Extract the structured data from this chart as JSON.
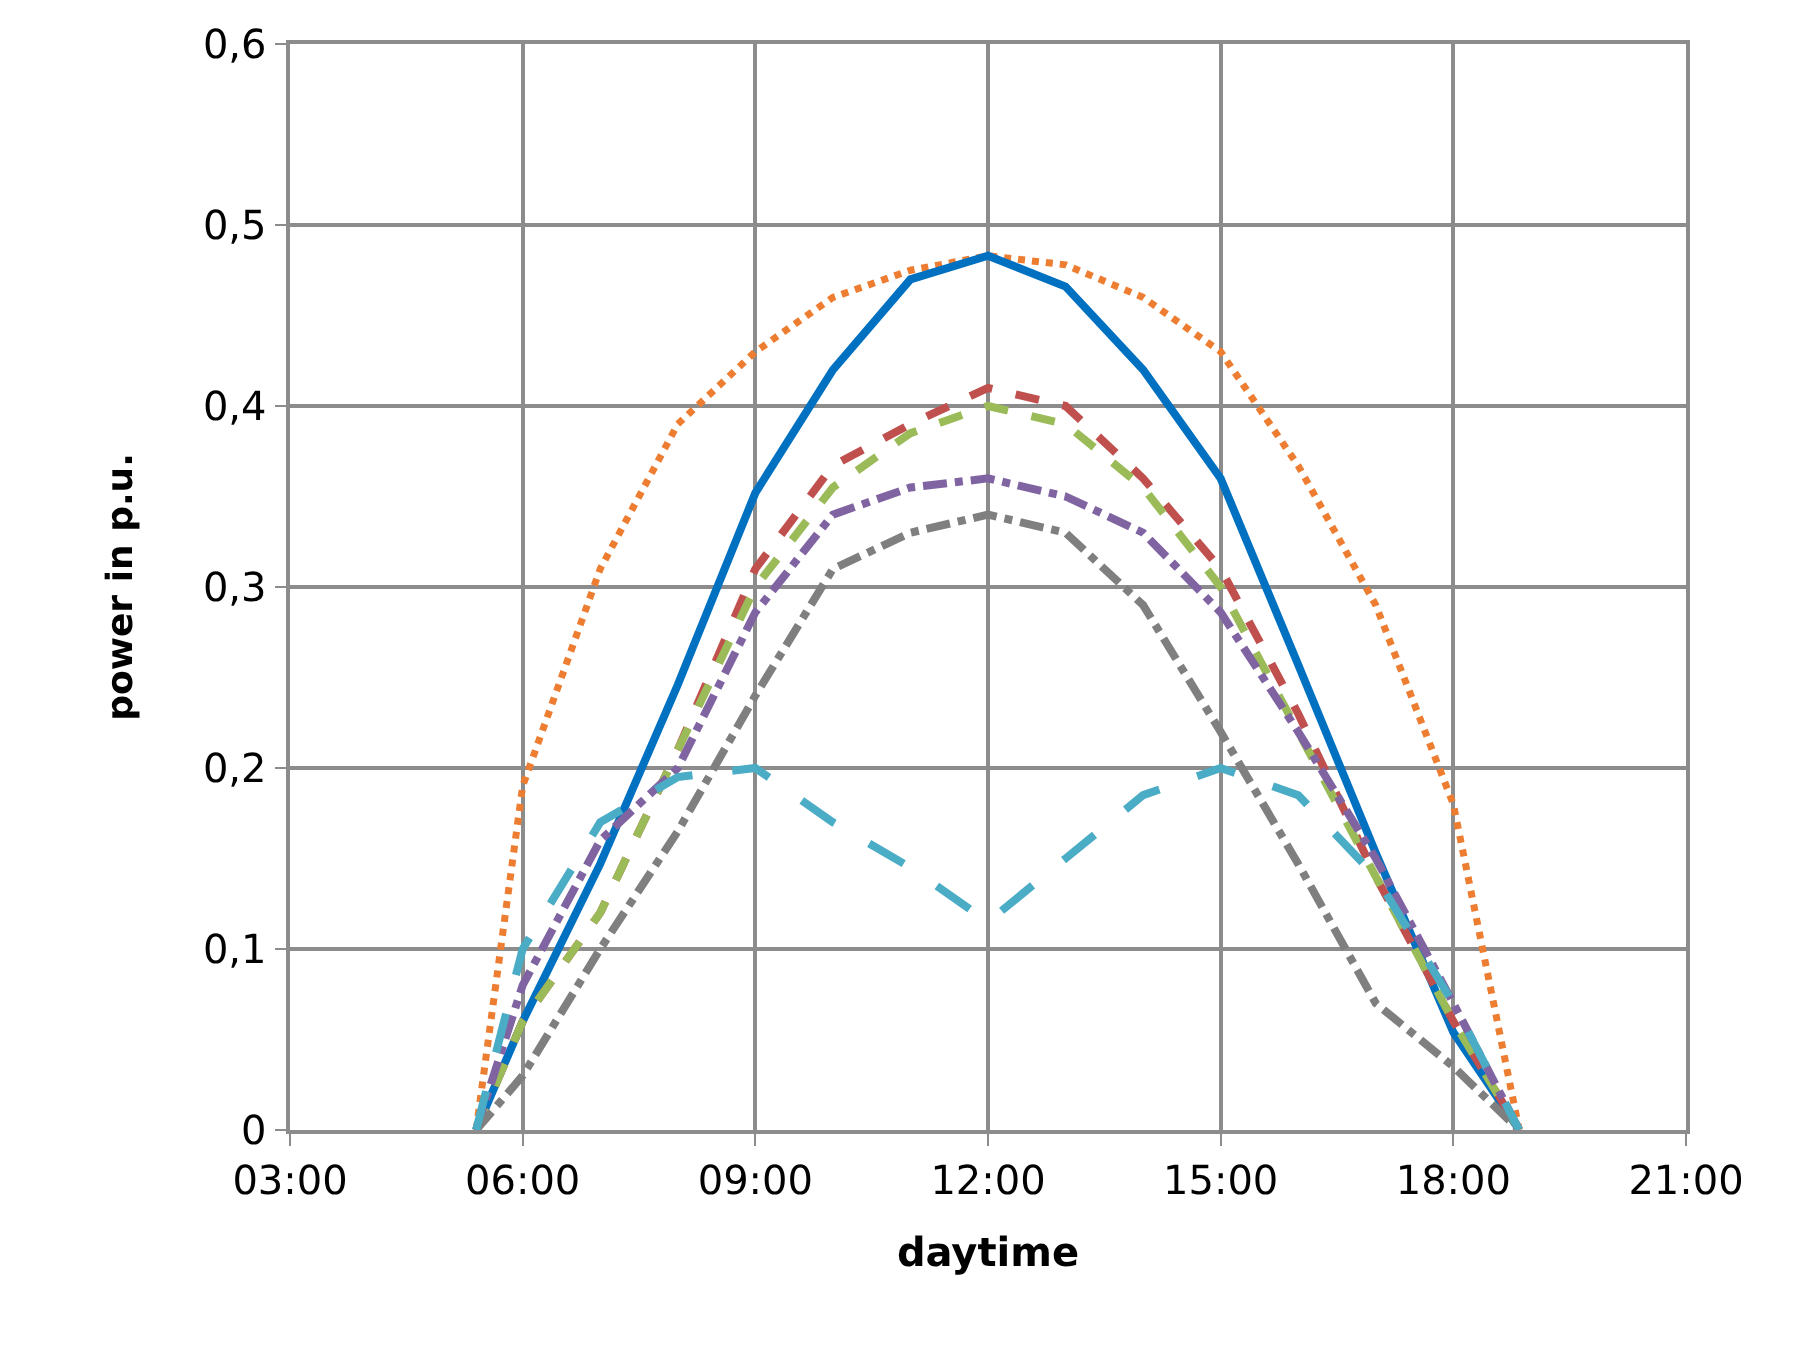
{
  "chart_data": {
    "type": "line",
    "xlabel": "daytime",
    "ylabel": "power in p.u.",
    "xlim": [
      3,
      21
    ],
    "xticks": [
      {
        "value": 3,
        "label": "03:00"
      },
      {
        "value": 6,
        "label": "06:00"
      },
      {
        "value": 9,
        "label": "09:00"
      },
      {
        "value": 12,
        "label": "12:00"
      },
      {
        "value": 15,
        "label": "15:00"
      },
      {
        "value": 18,
        "label": "18:00"
      },
      {
        "value": 21,
        "label": "21:00"
      }
    ],
    "ylim": [
      0,
      0.6
    ],
    "yticks": [
      0,
      {
        "value": 0.1,
        "label": "0,1"
      },
      {
        "value": 0.2,
        "label": "0,2"
      },
      {
        "value": 0.3,
        "label": "0,3"
      },
      {
        "value": 0.4,
        "label": "0,4"
      },
      {
        "value": 0.5,
        "label": "0,5"
      },
      {
        "value": 0.6,
        "label": "0,6"
      }
    ],
    "grid": true,
    "marker": "none",
    "x": [
      5.4,
      6,
      7,
      8,
      9,
      10,
      11,
      12,
      13,
      14,
      15,
      16,
      17,
      18,
      18.85
    ],
    "series": [
      {
        "color": "#ed7d31",
        "line_style": "dotted",
        "values": [
          0,
          0.19,
          0.31,
          0.39,
          0.43,
          0.46,
          0.475,
          0.483,
          0.478,
          0.46,
          0.43,
          0.367,
          0.29,
          0.18,
          0
        ]
      },
      {
        "color": "#0070c0",
        "line_style": "solid",
        "values": [
          0,
          0.06,
          0.147,
          0.246,
          0.352,
          0.42,
          0.47,
          0.483,
          0.466,
          0.42,
          0.36,
          0.257,
          0.153,
          0.054,
          0
        ]
      },
      {
        "color": "#c0504d",
        "line_style": "dashed",
        "values": [
          0,
          0.06,
          0.12,
          0.21,
          0.31,
          0.367,
          0.39,
          0.41,
          0.4,
          0.36,
          0.31,
          0.23,
          0.14,
          0.06,
          0
        ]
      },
      {
        "color": "#9bbb59",
        "line_style": "dashed",
        "values": [
          0,
          0.06,
          0.12,
          0.21,
          0.3,
          0.355,
          0.385,
          0.4,
          0.39,
          0.355,
          0.3,
          0.22,
          0.14,
          0.06,
          0
        ]
      },
      {
        "color": "#8064a2",
        "line_style": "dashdot",
        "values": [
          0,
          0.08,
          0.16,
          0.2,
          0.286,
          0.34,
          0.355,
          0.36,
          0.35,
          0.33,
          0.286,
          0.22,
          0.15,
          0.07,
          0
        ]
      },
      {
        "color": "#7f7f7f",
        "line_style": "dashdot",
        "values": [
          0,
          0.03,
          0.1,
          0.165,
          0.24,
          0.31,
          0.33,
          0.34,
          0.33,
          0.29,
          0.22,
          0.147,
          0.07,
          0.035,
          0
        ]
      },
      {
        "color": "#4bacc6",
        "line_style": "longdash",
        "values": [
          0,
          0.1,
          0.17,
          0.195,
          0.2,
          0.17,
          0.145,
          0.115,
          0.15,
          0.185,
          0.2,
          0.185,
          0.14,
          0.07,
          0
        ]
      }
    ]
  }
}
